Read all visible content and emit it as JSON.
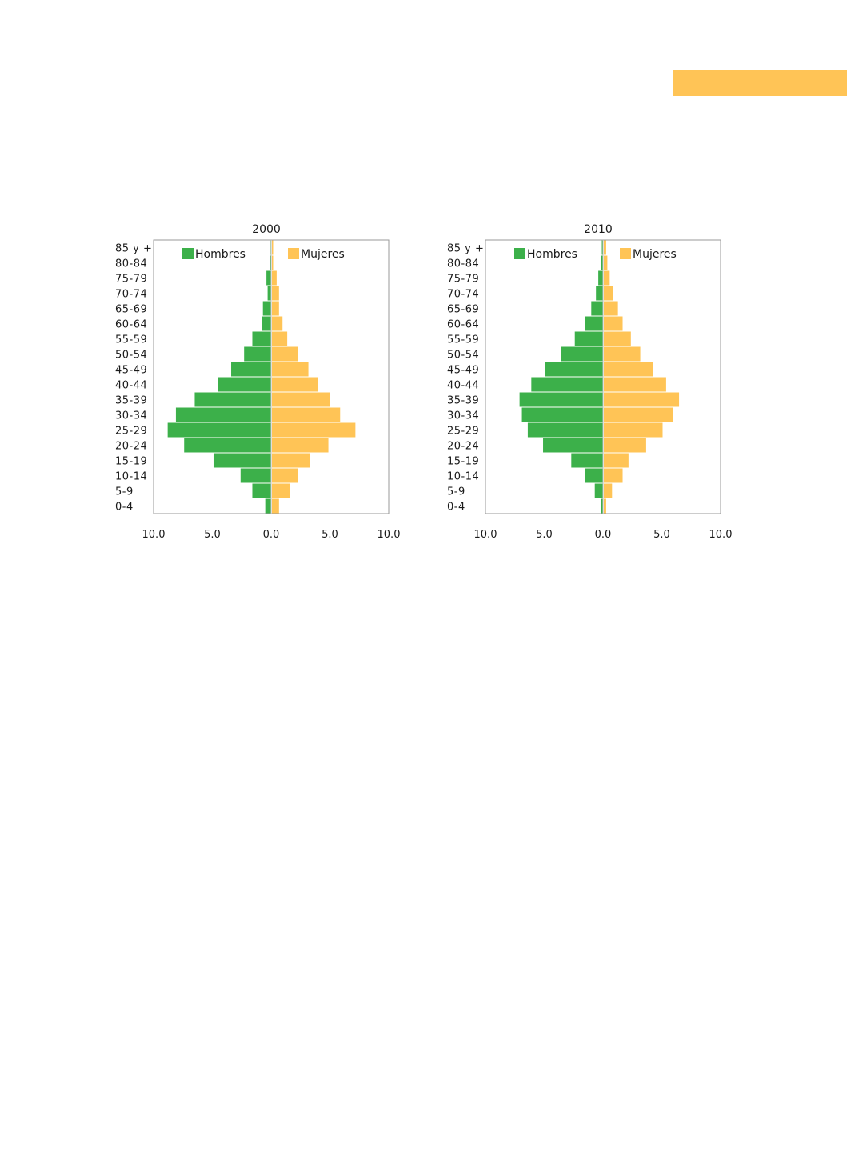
{
  "colors": {
    "accent_bar": "#FFC456",
    "hombres": "#3CB04A",
    "mujeres": "#FFC456",
    "frame": "#9a9a9a",
    "text": "#1a1a1a"
  },
  "chart_data": [
    {
      "type": "bar",
      "orientation": "horizontal-population-pyramid",
      "title": "2000",
      "categories": [
        "85 y +",
        "80-84",
        "75-79",
        "70-74",
        "65-69",
        "60-64",
        "55-59",
        "50-54",
        "45-49",
        "40-44",
        "35-39",
        "30-34",
        "25-29",
        "20-24",
        "15-19",
        "10-14",
        "5-9",
        "0-4"
      ],
      "x_ticks": [
        "10.0",
        "5.0",
        "0.0",
        "5.0",
        "10.0"
      ],
      "xlim": [
        -10,
        10
      ],
      "grid": false,
      "legend_position": "top",
      "series": [
        {
          "name": "Hombres",
          "values": [
            0.05,
            0.1,
            0.4,
            0.3,
            0.7,
            0.8,
            1.6,
            2.3,
            3.4,
            4.5,
            6.5,
            8.1,
            8.8,
            7.4,
            4.9,
            2.6,
            1.6,
            0.5
          ]
        },
        {
          "name": "Mujeres",
          "values": [
            0.1,
            0.1,
            0.4,
            0.6,
            0.6,
            0.9,
            1.3,
            2.2,
            3.1,
            3.9,
            4.9,
            5.8,
            7.1,
            4.8,
            3.2,
            2.2,
            1.5,
            0.6
          ]
        }
      ]
    },
    {
      "type": "bar",
      "orientation": "horizontal-population-pyramid",
      "title": "2010",
      "categories": [
        "85 y +",
        "80-84",
        "75-79",
        "70-74",
        "65-69",
        "60-64",
        "55-59",
        "50-54",
        "45-49",
        "40-44",
        "35-39",
        "30-34",
        "25-29",
        "20-24",
        "15-19",
        "10-14",
        "5-9",
        "0-4"
      ],
      "x_ticks": [
        "10.0",
        "5.0",
        "0.0",
        "5.0",
        "10.0"
      ],
      "xlim": [
        -10,
        10
      ],
      "grid": false,
      "legend_position": "top",
      "series": [
        {
          "name": "Hombres",
          "values": [
            0.1,
            0.2,
            0.4,
            0.6,
            1.0,
            1.5,
            2.4,
            3.6,
            4.9,
            6.1,
            7.1,
            6.9,
            6.4,
            5.1,
            2.7,
            1.5,
            0.7,
            0.2
          ]
        },
        {
          "name": "Mujeres",
          "values": [
            0.2,
            0.3,
            0.5,
            0.8,
            1.2,
            1.6,
            2.3,
            3.1,
            4.2,
            5.3,
            6.4,
            5.9,
            5.0,
            3.6,
            2.1,
            1.6,
            0.7,
            0.2
          ]
        }
      ]
    }
  ]
}
